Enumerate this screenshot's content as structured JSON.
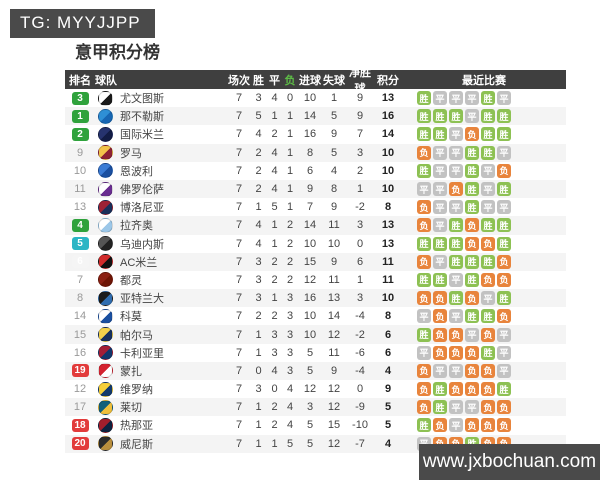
{
  "header_badge": {
    "text": "TG: MYYJJPP"
  },
  "footer_badge": {
    "text": "www.jxbochuan.com"
  },
  "title": "意甲积分榜",
  "colors": {
    "header_bg": "#3f3f3f",
    "loss_header": "#5dbb46",
    "rank_green": "#2fa23c",
    "rank_cyan": "#2bb5c5",
    "rank_red": "#e23b3b",
    "rank_faint": "#f5f5f5",
    "win_badge": "#8dc153",
    "draw_badge": "#c2c2c2",
    "loss_badge": "#e8843c",
    "stripe": "#f4f4f4",
    "box_bg": "#4a4a4a"
  },
  "table": {
    "columns": [
      "排名",
      "球队",
      "场次",
      "胜",
      "平",
      "负",
      "进球",
      "失球",
      "净胜球",
      "积分",
      "最近比赛"
    ],
    "result_labels": {
      "win": "胜",
      "draw": "平",
      "loss": "负"
    },
    "rows": [
      {
        "rank": "3",
        "rank_style": "green",
        "team": "尤文图斯",
        "logo": [
          "#ffffff",
          "#1a1a1a"
        ],
        "p": 7,
        "w": 3,
        "d": 4,
        "l": 0,
        "gf": 10,
        "ga": 1,
        "gd": 9,
        "pts": 13,
        "recent": [
          "胜",
          "平",
          "平",
          "平",
          "胜",
          "平"
        ]
      },
      {
        "rank": "1",
        "rank_style": "green",
        "team": "那不勒斯",
        "logo": [
          "#2e8fd5",
          "#1766b3"
        ],
        "p": 7,
        "w": 5,
        "d": 1,
        "l": 1,
        "gf": 14,
        "ga": 5,
        "gd": 9,
        "pts": 16,
        "recent": [
          "胜",
          "胜",
          "胜",
          "平",
          "胜",
          "胜"
        ]
      },
      {
        "rank": "2",
        "rank_style": "green",
        "team": "国际米兰",
        "logo": [
          "#26336e",
          "#121c45"
        ],
        "p": 7,
        "w": 4,
        "d": 2,
        "l": 1,
        "gf": 16,
        "ga": 9,
        "gd": 7,
        "pts": 14,
        "recent": [
          "胜",
          "胜",
          "平",
          "负",
          "胜",
          "胜"
        ]
      },
      {
        "rank": "9",
        "rank_style": "none",
        "team": "罗马",
        "logo": [
          "#f3c34a",
          "#8e2134"
        ],
        "p": 7,
        "w": 2,
        "d": 4,
        "l": 1,
        "gf": 8,
        "ga": 5,
        "gd": 3,
        "pts": 10,
        "recent": [
          "负",
          "平",
          "平",
          "胜",
          "胜",
          "平"
        ]
      },
      {
        "rank": "10",
        "rank_style": "none",
        "team": "恩波利",
        "logo": [
          "#3a7bd5",
          "#1a4fa0"
        ],
        "p": 7,
        "w": 2,
        "d": 4,
        "l": 1,
        "gf": 6,
        "ga": 4,
        "gd": 2,
        "pts": 10,
        "recent": [
          "胜",
          "平",
          "平",
          "胜",
          "平",
          "负"
        ]
      },
      {
        "rank": "11",
        "rank_style": "none",
        "team": "佛罗伦萨",
        "logo": [
          "#ffffff",
          "#6a2d91"
        ],
        "p": 7,
        "w": 2,
        "d": 4,
        "l": 1,
        "gf": 9,
        "ga": 8,
        "gd": 1,
        "pts": 10,
        "recent": [
          "平",
          "平",
          "负",
          "胜",
          "平",
          "胜"
        ]
      },
      {
        "rank": "13",
        "rank_style": "none",
        "team": "博洛尼亚",
        "logo": [
          "#9d2235",
          "#1a2f5a"
        ],
        "p": 7,
        "w": 1,
        "d": 5,
        "l": 1,
        "gf": 7,
        "ga": 9,
        "gd": -2,
        "pts": 8,
        "recent": [
          "负",
          "平",
          "平",
          "胜",
          "平",
          "平"
        ]
      },
      {
        "rank": "4",
        "rank_style": "green",
        "team": "拉齐奥",
        "logo": [
          "#ffffff",
          "#9cc7e8"
        ],
        "p": 7,
        "w": 4,
        "d": 1,
        "l": 2,
        "gf": 14,
        "ga": 11,
        "gd": 3,
        "pts": 13,
        "recent": [
          "负",
          "平",
          "胜",
          "负",
          "胜",
          "胜"
        ]
      },
      {
        "rank": "5",
        "rank_style": "cyan",
        "team": "乌迪内斯",
        "logo": [
          "#555555",
          "#222222"
        ],
        "p": 7,
        "w": 4,
        "d": 1,
        "l": 2,
        "gf": 10,
        "ga": 10,
        "gd": 0,
        "pts": 13,
        "recent": [
          "胜",
          "胜",
          "胜",
          "负",
          "负",
          "胜"
        ]
      },
      {
        "rank": "6",
        "rank_style": "faint",
        "team": "AC米兰",
        "logo": [
          "#d22b2b",
          "#111111"
        ],
        "p": 7,
        "w": 3,
        "d": 2,
        "l": 2,
        "gf": 15,
        "ga": 9,
        "gd": 6,
        "pts": 11,
        "recent": [
          "负",
          "平",
          "胜",
          "胜",
          "胜",
          "负"
        ]
      },
      {
        "rank": "7",
        "rank_style": "none",
        "team": "都灵",
        "logo": [
          "#8b2012",
          "#6e1505"
        ],
        "p": 7,
        "w": 3,
        "d": 2,
        "l": 2,
        "gf": 12,
        "ga": 11,
        "gd": 1,
        "pts": 11,
        "recent": [
          "胜",
          "胜",
          "平",
          "胜",
          "负",
          "负"
        ]
      },
      {
        "rank": "8",
        "rank_style": "none",
        "team": "亚特兰大",
        "logo": [
          "#1b1b1b",
          "#2f6db0"
        ],
        "p": 7,
        "w": 3,
        "d": 1,
        "l": 3,
        "gf": 16,
        "ga": 13,
        "gd": 3,
        "pts": 10,
        "recent": [
          "负",
          "负",
          "胜",
          "负",
          "平",
          "胜"
        ]
      },
      {
        "rank": "14",
        "rank_style": "none",
        "team": "科莫",
        "logo": [
          "#ffffff",
          "#1a4fa0"
        ],
        "p": 7,
        "w": 2,
        "d": 2,
        "l": 3,
        "gf": 10,
        "ga": 14,
        "gd": -4,
        "pts": 8,
        "recent": [
          "平",
          "负",
          "平",
          "胜",
          "胜",
          "负"
        ]
      },
      {
        "rank": "15",
        "rank_style": "none",
        "team": "帕尔马",
        "logo": [
          "#f2d14b",
          "#16305e"
        ],
        "p": 7,
        "w": 1,
        "d": 3,
        "l": 3,
        "gf": 10,
        "ga": 12,
        "gd": -2,
        "pts": 6,
        "recent": [
          "胜",
          "负",
          "负",
          "平",
          "负",
          "平"
        ]
      },
      {
        "rank": "16",
        "rank_style": "none",
        "team": "卡利亚里",
        "logo": [
          "#a31e36",
          "#12366b"
        ],
        "p": 7,
        "w": 1,
        "d": 3,
        "l": 3,
        "gf": 5,
        "ga": 11,
        "gd": -6,
        "pts": 6,
        "recent": [
          "平",
          "负",
          "负",
          "负",
          "胜",
          "平"
        ]
      },
      {
        "rank": "19",
        "rank_style": "red",
        "team": "蒙扎",
        "logo": [
          "#d42330",
          "#ffffff"
        ],
        "p": 7,
        "w": 0,
        "d": 4,
        "l": 3,
        "gf": 5,
        "ga": 9,
        "gd": -4,
        "pts": 4,
        "recent": [
          "负",
          "平",
          "平",
          "负",
          "负",
          "平"
        ]
      },
      {
        "rank": "12",
        "rank_style": "none",
        "team": "维罗纳",
        "logo": [
          "#f5cf3a",
          "#123a6d"
        ],
        "p": 7,
        "w": 3,
        "d": 0,
        "l": 4,
        "gf": 12,
        "ga": 12,
        "gd": 0,
        "pts": 9,
        "recent": [
          "负",
          "胜",
          "负",
          "负",
          "负",
          "胜"
        ]
      },
      {
        "rank": "17",
        "rank_style": "none",
        "team": "莱切",
        "logo": [
          "#135f79",
          "#f0c03c"
        ],
        "p": 7,
        "w": 1,
        "d": 2,
        "l": 4,
        "gf": 3,
        "ga": 12,
        "gd": -9,
        "pts": 5,
        "recent": [
          "负",
          "胜",
          "平",
          "平",
          "负",
          "负"
        ]
      },
      {
        "rank": "18",
        "rank_style": "red",
        "team": "热那亚",
        "logo": [
          "#a31e2c",
          "#0e2240"
        ],
        "p": 7,
        "w": 1,
        "d": 2,
        "l": 4,
        "gf": 5,
        "ga": 15,
        "gd": -10,
        "pts": 5,
        "recent": [
          "胜",
          "负",
          "平",
          "负",
          "负",
          "负"
        ]
      },
      {
        "rank": "20",
        "rank_style": "red",
        "team": "威尼斯",
        "logo": [
          "#2b2b2b",
          "#b98f3e"
        ],
        "p": 7,
        "w": 1,
        "d": 1,
        "l": 5,
        "gf": 5,
        "ga": 12,
        "gd": -7,
        "pts": 4,
        "recent": [
          "平",
          "负",
          "负",
          "胜",
          "负",
          "负"
        ]
      }
    ]
  }
}
